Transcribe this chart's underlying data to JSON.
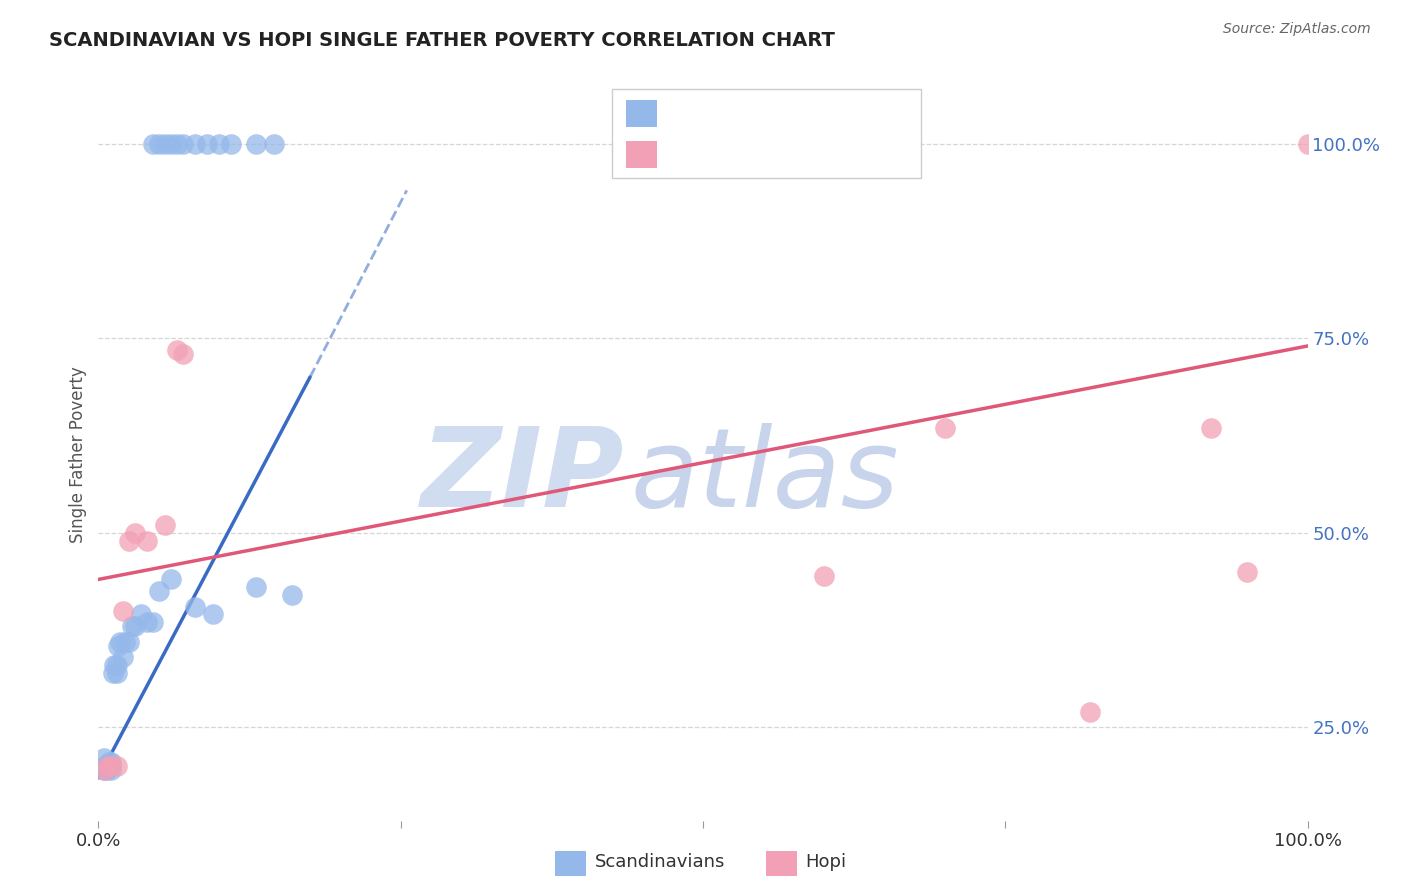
{
  "title": "SCANDINAVIAN VS HOPI SINGLE FATHER POVERTY CORRELATION CHART",
  "source": "Source: ZipAtlas.com",
  "ylabel_label": "Single Father Poverty",
  "legend_scandinavians": "Scandinavians",
  "legend_hopi": "Hopi",
  "scandinavian_x": [
    0.005,
    0.005,
    0.005,
    0.007,
    0.008,
    0.009,
    0.01,
    0.01,
    0.01,
    0.012,
    0.013,
    0.015,
    0.015,
    0.016,
    0.018,
    0.02,
    0.022,
    0.025,
    0.028,
    0.03,
    0.035,
    0.04,
    0.045,
    0.05,
    0.06,
    0.08,
    0.095,
    0.13,
    0.16
  ],
  "scandinavian_y": [
    0.195,
    0.2,
    0.21,
    0.195,
    0.2,
    0.205,
    0.195,
    0.2,
    0.205,
    0.32,
    0.33,
    0.32,
    0.33,
    0.355,
    0.36,
    0.34,
    0.36,
    0.36,
    0.38,
    0.38,
    0.395,
    0.385,
    0.385,
    0.425,
    0.44,
    0.405,
    0.395,
    0.43,
    0.42
  ],
  "scandinavian_top_x": [
    0.045,
    0.05,
    0.055,
    0.06,
    0.065,
    0.07,
    0.08,
    0.09,
    0.1,
    0.11,
    0.13,
    0.145
  ],
  "scandinavian_top_y": [
    1.0,
    1.0,
    1.0,
    1.0,
    1.0,
    1.0,
    1.0,
    1.0,
    1.0,
    1.0,
    1.0,
    1.0
  ],
  "hopi_x": [
    0.005,
    0.008,
    0.01,
    0.015,
    0.02,
    0.025,
    0.03,
    0.04,
    0.055,
    0.065,
    0.07,
    0.6,
    0.7,
    0.82,
    0.92,
    0.95,
    1.0
  ],
  "hopi_y": [
    0.195,
    0.2,
    0.2,
    0.2,
    0.4,
    0.49,
    0.5,
    0.49,
    0.51,
    0.735,
    0.73,
    0.445,
    0.635,
    0.27,
    0.635,
    0.45,
    1.0
  ],
  "blue_line_x0": 0.0,
  "blue_line_y0": 0.185,
  "blue_line_x1": 0.175,
  "blue_line_y1": 0.7,
  "blue_line_dash_x0": 0.175,
  "blue_line_dash_y0": 0.7,
  "blue_line_dash_x1": 0.255,
  "blue_line_dash_y1": 0.94,
  "pink_line_x0": 0.0,
  "pink_line_y0": 0.44,
  "pink_line_x1": 1.0,
  "pink_line_y1": 0.74,
  "blue_line_color": "#3A6BC4",
  "pink_line_color": "#E05878",
  "blue_dot_color": "#94B8EA",
  "pink_dot_color": "#F2A0B5",
  "background_color": "#FFFFFF",
  "grid_color": "#CCCCCC",
  "watermark_zip_color": "#D0DCF0",
  "watermark_atlas_color": "#C8D4EC",
  "title_color": "#222222",
  "axis_tick_color": "#4472C4",
  "xlim": [
    0.0,
    1.0
  ],
  "ylim": [
    0.13,
    1.07
  ]
}
